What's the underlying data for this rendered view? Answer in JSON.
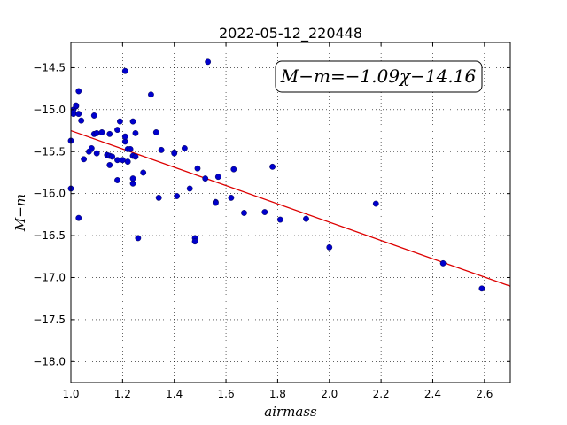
{
  "chart_data": {
    "type": "scatter",
    "title": "2022-05-12_220448",
    "xlabel": "airmass",
    "ylabel": "M−m",
    "xlim": [
      1.0,
      2.7
    ],
    "ylim": [
      -18.25,
      -14.2
    ],
    "y_inverted": true,
    "grid": true,
    "x_ticks": [
      1.0,
      1.2,
      1.4,
      1.6,
      1.8,
      2.0,
      2.2,
      2.4,
      2.6
    ],
    "x_tick_labels": [
      "1.0",
      "1.2",
      "1.4",
      "1.6",
      "1.8",
      "2.0",
      "2.2",
      "2.4",
      "2.6"
    ],
    "y_ticks": [
      -14.5,
      -15.0,
      -15.5,
      -16.0,
      -16.5,
      -17.0,
      -17.5,
      -18.0
    ],
    "y_tick_labels": [
      "−14.5",
      "−15.0",
      "−15.5",
      "−16.0",
      "−16.5",
      "−17.0",
      "−17.5",
      "−18.0"
    ],
    "annotation": "M−m=−1.09χ−14.16",
    "marker_color": "#0000cc",
    "fit_color": "#dd0000",
    "fit": {
      "slope": -1.09,
      "intercept": -14.16
    },
    "points": [
      {
        "x": 1.0,
        "y": -15.37
      },
      {
        "x": 1.0,
        "y": -15.94
      },
      {
        "x": 1.01,
        "y": -15.05
      },
      {
        "x": 1.01,
        "y": -15.0
      },
      {
        "x": 1.02,
        "y": -14.96
      },
      {
        "x": 1.02,
        "y": -14.95
      },
      {
        "x": 1.03,
        "y": -14.78
      },
      {
        "x": 1.03,
        "y": -15.05
      },
      {
        "x": 1.03,
        "y": -16.29
      },
      {
        "x": 1.04,
        "y": -15.13
      },
      {
        "x": 1.05,
        "y": -15.59
      },
      {
        "x": 1.07,
        "y": -15.5
      },
      {
        "x": 1.08,
        "y": -15.46
      },
      {
        "x": 1.09,
        "y": -15.07
      },
      {
        "x": 1.09,
        "y": -15.29
      },
      {
        "x": 1.1,
        "y": -15.52
      },
      {
        "x": 1.1,
        "y": -15.28
      },
      {
        "x": 1.12,
        "y": -15.27
      },
      {
        "x": 1.14,
        "y": -15.54
      },
      {
        "x": 1.15,
        "y": -15.55
      },
      {
        "x": 1.15,
        "y": -15.66
      },
      {
        "x": 1.15,
        "y": -15.29
      },
      {
        "x": 1.16,
        "y": -15.56
      },
      {
        "x": 1.18,
        "y": -15.6
      },
      {
        "x": 1.18,
        "y": -15.84
      },
      {
        "x": 1.18,
        "y": -15.24
      },
      {
        "x": 1.19,
        "y": -15.14
      },
      {
        "x": 1.2,
        "y": -15.6
      },
      {
        "x": 1.21,
        "y": -15.38
      },
      {
        "x": 1.21,
        "y": -15.32
      },
      {
        "x": 1.21,
        "y": -14.54
      },
      {
        "x": 1.22,
        "y": -15.47
      },
      {
        "x": 1.22,
        "y": -15.62
      },
      {
        "x": 1.23,
        "y": -15.47
      },
      {
        "x": 1.24,
        "y": -15.88
      },
      {
        "x": 1.24,
        "y": -15.14
      },
      {
        "x": 1.24,
        "y": -15.82
      },
      {
        "x": 1.24,
        "y": -15.55
      },
      {
        "x": 1.25,
        "y": -15.28
      },
      {
        "x": 1.25,
        "y": -15.56
      },
      {
        "x": 1.26,
        "y": -16.53
      },
      {
        "x": 1.28,
        "y": -15.75
      },
      {
        "x": 1.31,
        "y": -14.82
      },
      {
        "x": 1.33,
        "y": -15.27
      },
      {
        "x": 1.34,
        "y": -16.05
      },
      {
        "x": 1.35,
        "y": -15.48
      },
      {
        "x": 1.4,
        "y": -15.51
      },
      {
        "x": 1.4,
        "y": -15.52
      },
      {
        "x": 1.41,
        "y": -16.03
      },
      {
        "x": 1.44,
        "y": -15.46
      },
      {
        "x": 1.46,
        "y": -15.94
      },
      {
        "x": 1.48,
        "y": -16.53
      },
      {
        "x": 1.48,
        "y": -16.57
      },
      {
        "x": 1.49,
        "y": -15.7
      },
      {
        "x": 1.52,
        "y": -15.82
      },
      {
        "x": 1.53,
        "y": -14.43
      },
      {
        "x": 1.56,
        "y": -16.1
      },
      {
        "x": 1.56,
        "y": -16.11
      },
      {
        "x": 1.57,
        "y": -15.8
      },
      {
        "x": 1.62,
        "y": -16.05
      },
      {
        "x": 1.63,
        "y": -15.71
      },
      {
        "x": 1.67,
        "y": -16.23
      },
      {
        "x": 1.75,
        "y": -16.22
      },
      {
        "x": 1.78,
        "y": -15.68
      },
      {
        "x": 1.81,
        "y": -16.31
      },
      {
        "x": 1.91,
        "y": -16.3
      },
      {
        "x": 2.0,
        "y": -16.64
      },
      {
        "x": 2.18,
        "y": -16.12
      },
      {
        "x": 2.44,
        "y": -16.83
      },
      {
        "x": 2.59,
        "y": -17.13
      }
    ]
  }
}
